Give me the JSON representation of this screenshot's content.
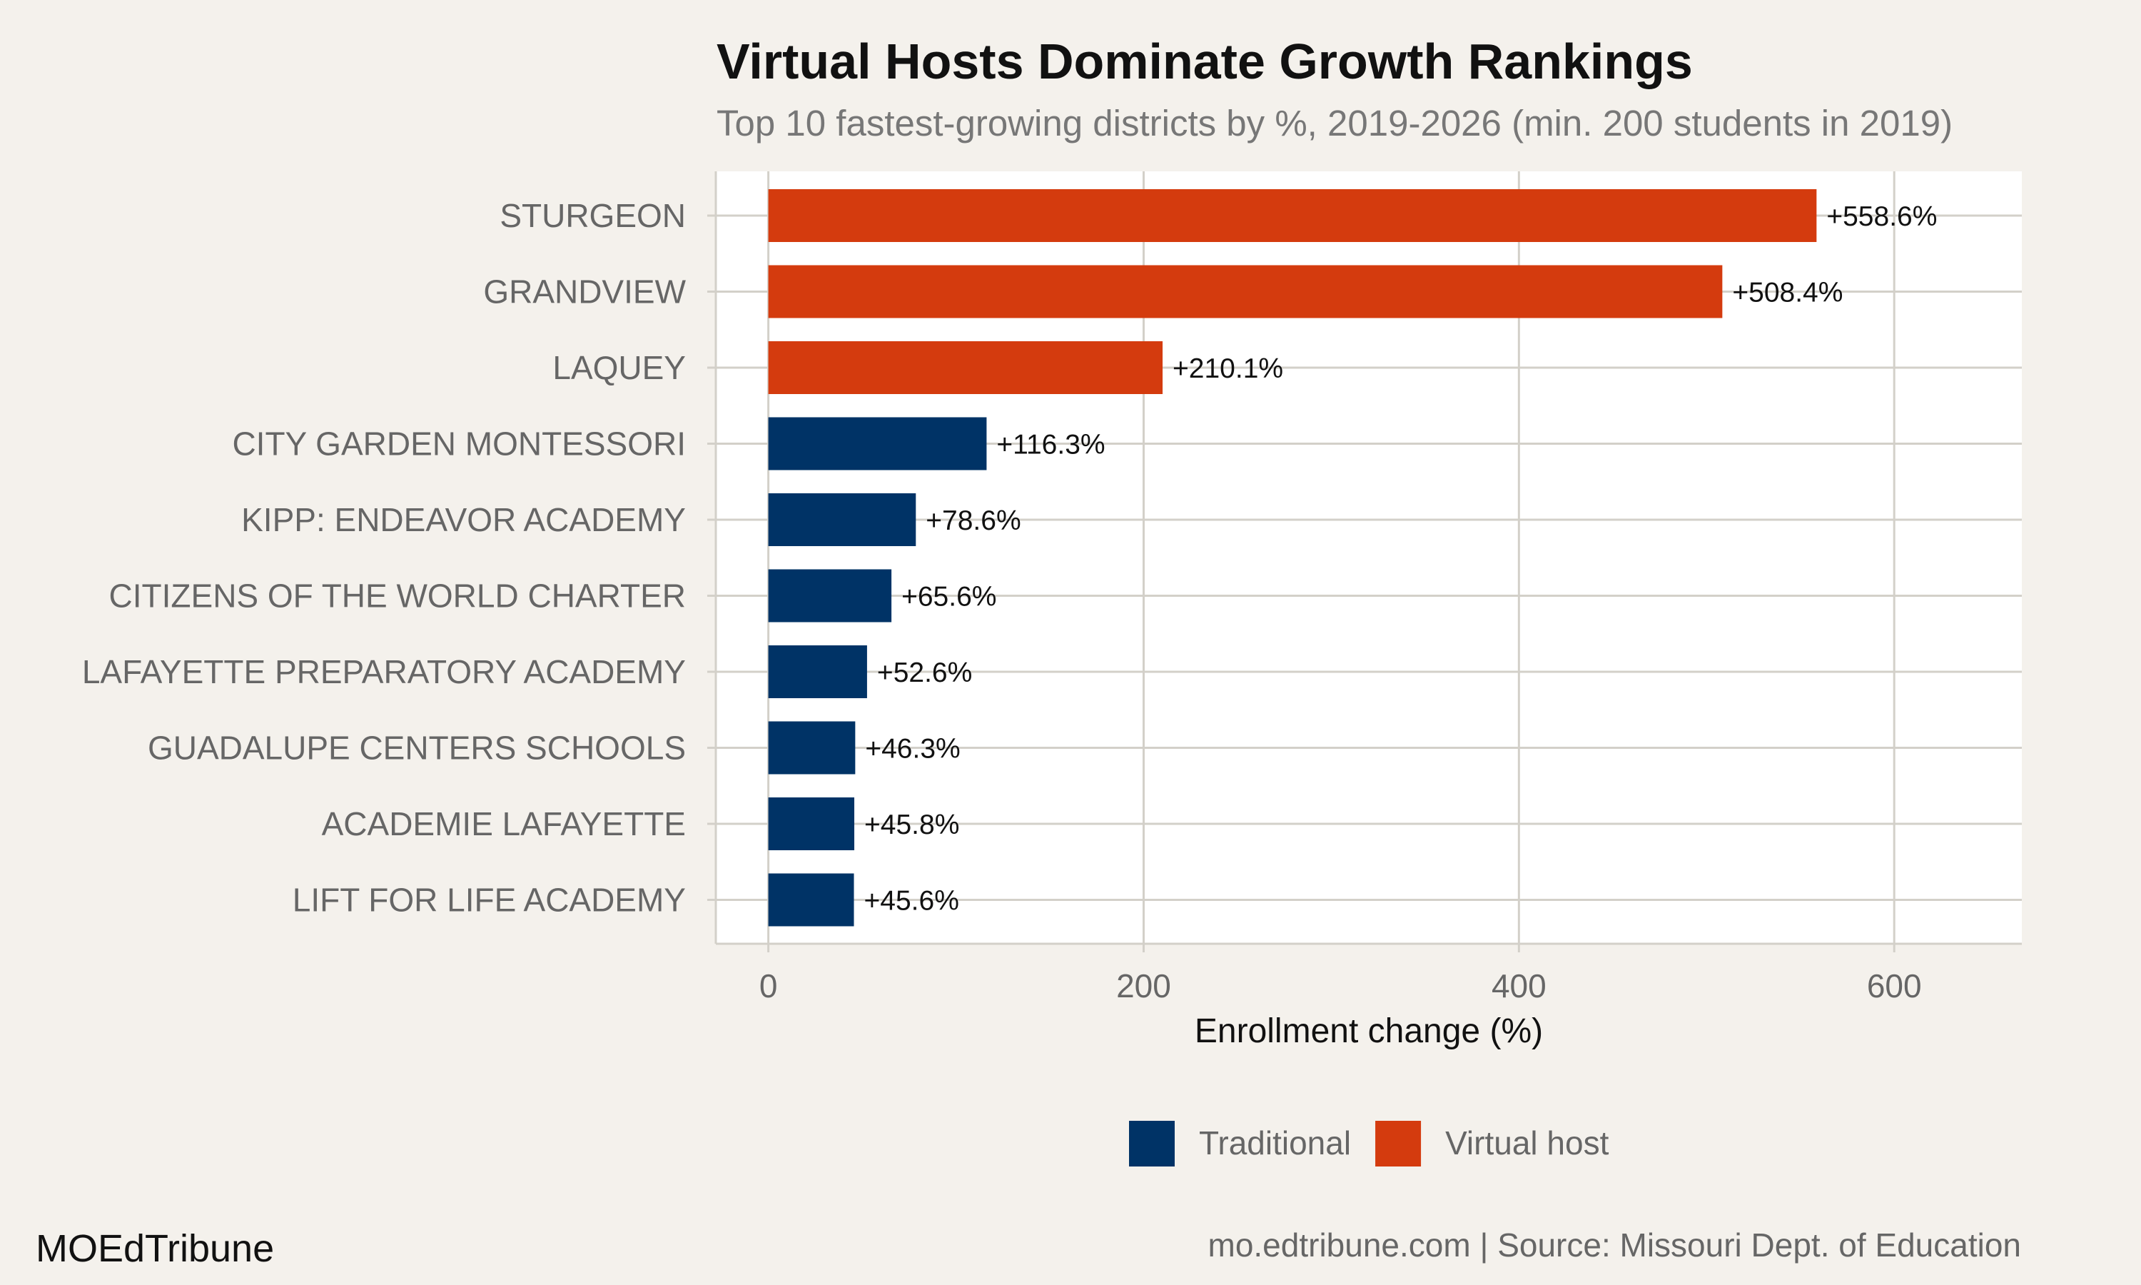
{
  "title": "Virtual Hosts Dominate Growth Rankings",
  "subtitle": "Top 10 fastest-growing districts by %, 2019-2026 (min. 200 students in 2019)",
  "brand": "MOEdTribune",
  "credit": "mo.edtribune.com | Source: Missouri Dept. of Education",
  "colors": {
    "background": "#f4f1ec",
    "panel": "#ffffff",
    "grid": "#d3d0c9",
    "traditional": "#003366",
    "virtual_host": "#d43b0e"
  },
  "chart_data": {
    "type": "bar",
    "orientation": "horizontal",
    "title": "Virtual Hosts Dominate Growth Rankings",
    "subtitle": "Top 10 fastest-growing districts by %, 2019-2026 (min. 200 students in 2019)",
    "xlabel": "Enrollment change (%)",
    "ylabel": "",
    "xlim": [
      -28,
      668
    ],
    "x_ticks": [
      0,
      200,
      400,
      600
    ],
    "x_tick_labels": [
      "0",
      "200",
      "400",
      "600"
    ],
    "grid": true,
    "legend_position": "bottom",
    "legend": [
      {
        "key": "traditional",
        "label": "Traditional",
        "color": "#003366"
      },
      {
        "key": "virtual_host",
        "label": "Virtual host",
        "color": "#d43b0e"
      }
    ],
    "categories": [
      "STURGEON",
      "GRANDVIEW",
      "LAQUEY",
      "CITY GARDEN MONTESSORI",
      "KIPP: ENDEAVOR ACADEMY",
      "CITIZENS OF THE WORLD CHARTER",
      "LAFAYETTE PREPARATORY ACADEMY",
      "GUADALUPE CENTERS SCHOOLS",
      "ACADEMIE LAFAYETTE",
      "LIFT FOR LIFE ACADEMY"
    ],
    "values": [
      558.6,
      508.4,
      210.1,
      116.3,
      78.6,
      65.6,
      52.6,
      46.3,
      45.8,
      45.6
    ],
    "data_labels": [
      "+558.6%",
      "+508.4%",
      "+210.1%",
      "+116.3%",
      "+78.6%",
      "+65.6%",
      "+52.6%",
      "+46.3%",
      "+45.8%",
      "+45.6%"
    ],
    "groups": [
      "virtual_host",
      "virtual_host",
      "virtual_host",
      "traditional",
      "traditional",
      "traditional",
      "traditional",
      "traditional",
      "traditional",
      "traditional"
    ]
  }
}
